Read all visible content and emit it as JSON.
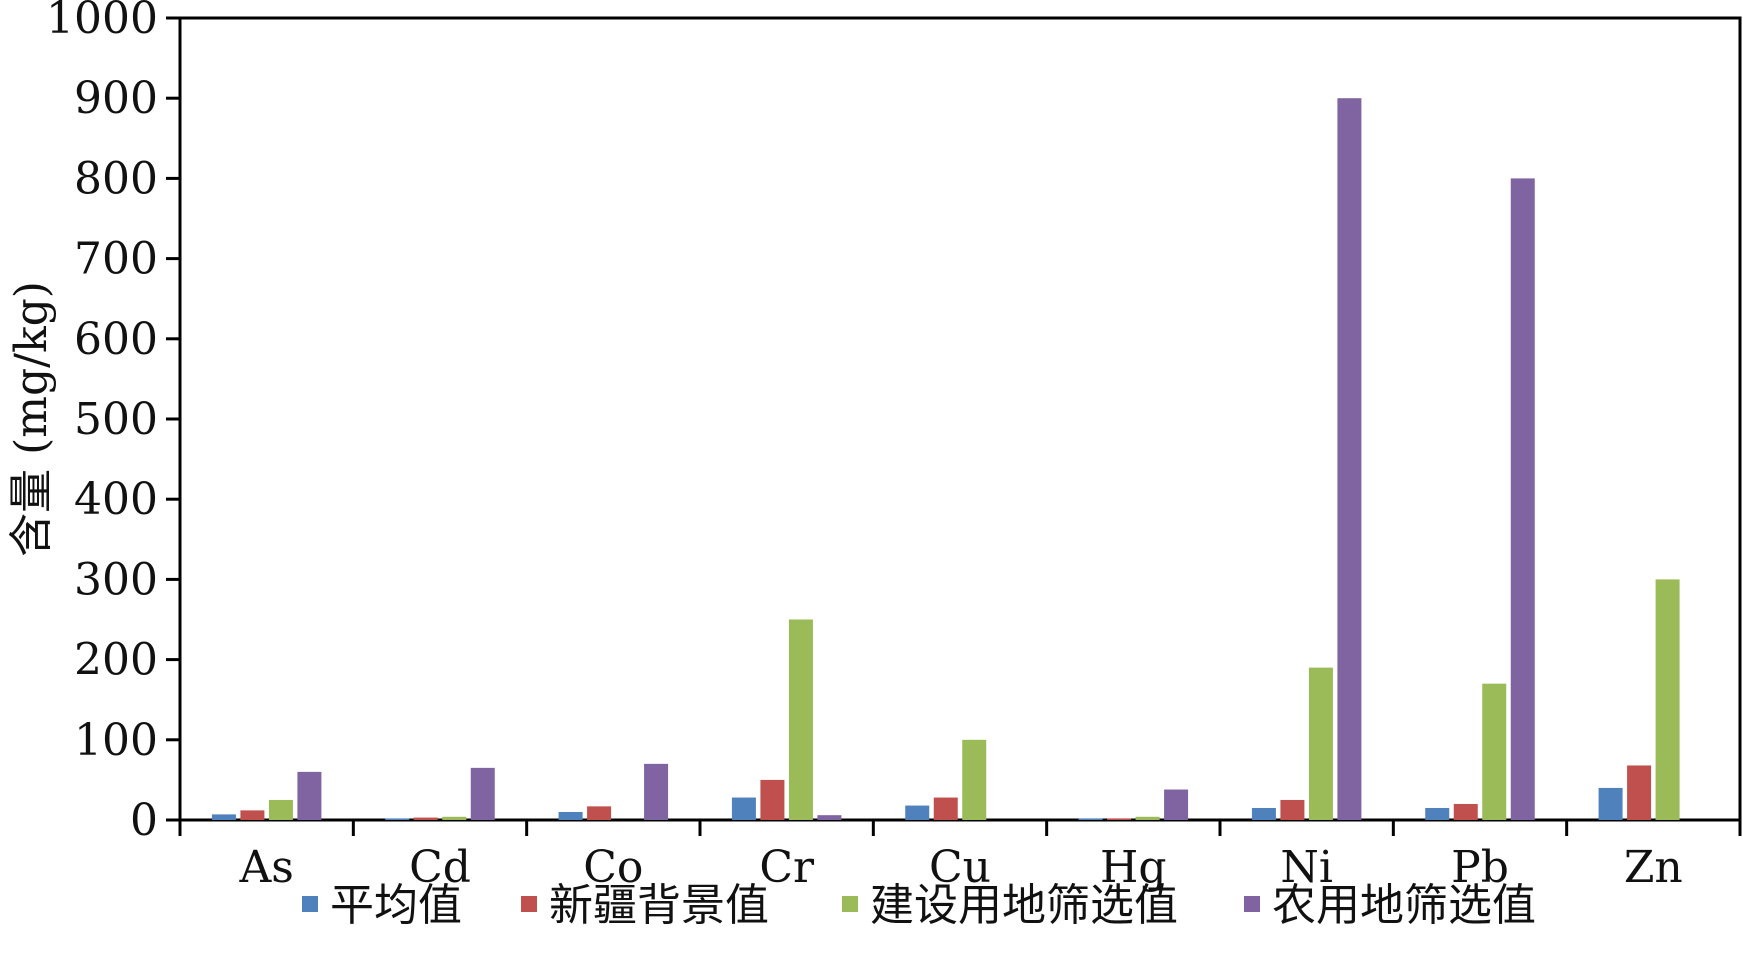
{
  "chart_data": {
    "type": "bar",
    "title": "",
    "xlabel": "",
    "ylabel": "含量 (mg/kg)",
    "ylim": [
      0,
      1000
    ],
    "yticks": [
      0,
      100,
      200,
      300,
      400,
      500,
      600,
      700,
      800,
      900,
      1000
    ],
    "grid": false,
    "legend_position": "bottom",
    "categories": [
      "As",
      "Cd",
      "Co",
      "Cr",
      "Cu",
      "Hg",
      "Ni",
      "Pb",
      "Zn"
    ],
    "series": [
      {
        "name": "平均值",
        "color": "#4F81BD",
        "values": [
          7,
          2,
          10,
          28,
          18,
          2,
          15,
          15,
          40
        ]
      },
      {
        "name": "新疆背景值",
        "color": "#C0504D",
        "values": [
          12,
          3,
          17,
          50,
          28,
          2,
          25,
          20,
          68
        ]
      },
      {
        "name": "建设用地筛选值",
        "color": "#9BBB59",
        "values": [
          25,
          4,
          0,
          250,
          100,
          4,
          190,
          170,
          300
        ]
      },
      {
        "name": "农用地筛选值",
        "color": "#8064A2",
        "values": [
          60,
          65,
          70,
          6,
          0,
          38,
          900,
          800,
          0
        ]
      }
    ]
  }
}
